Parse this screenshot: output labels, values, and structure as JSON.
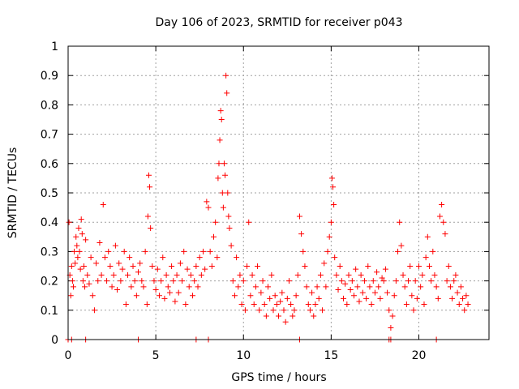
{
  "chart_data": {
    "type": "scatter",
    "title": "Day 106 of 2023, SRMTID for receiver p043",
    "xlabel": "GPS time / hours",
    "ylabel": "SRMTID / TECUs",
    "xlim": [
      0,
      24
    ],
    "ylim": [
      0,
      1
    ],
    "xticks": [
      0,
      5,
      10,
      15,
      20
    ],
    "xtick_labels": [
      "0",
      "5",
      "10",
      "15",
      "20"
    ],
    "yticks": [
      0,
      0.1,
      0.2,
      0.3,
      0.4,
      0.5,
      0.6,
      0.7,
      0.8,
      0.9,
      1
    ],
    "ytick_labels": [
      "0",
      "0.1",
      "0.2",
      "0.3",
      "0.4",
      "0.5",
      "0.6",
      "0.7",
      "0.8",
      "0.9",
      "1"
    ],
    "grid": true,
    "marker": "+",
    "color": "#ff0000",
    "series": [
      {
        "name": "SRMTID",
        "x": [
          0.05,
          0.1,
          0.15,
          0.2,
          0.25,
          0.3,
          0.35,
          0.4,
          0.45,
          0.5,
          0.55,
          0.6,
          0.65,
          0.7,
          0.75,
          0.8,
          0.85,
          0.9,
          0.95,
          1.0,
          1.1,
          1.2,
          1.3,
          1.4,
          1.5,
          1.6,
          1.7,
          1.8,
          1.9,
          2.0,
          2.1,
          2.2,
          2.3,
          2.4,
          2.5,
          2.6,
          2.7,
          2.8,
          2.9,
          3.0,
          3.1,
          3.2,
          3.3,
          3.4,
          3.5,
          3.6,
          3.7,
          3.8,
          3.9,
          4.0,
          4.1,
          4.2,
          4.3,
          4.4,
          4.5,
          4.55,
          4.6,
          4.65,
          4.7,
          4.8,
          4.9,
          5.0,
          5.1,
          5.2,
          5.3,
          5.4,
          5.5,
          5.6,
          5.7,
          5.8,
          5.9,
          6.0,
          6.1,
          6.2,
          6.3,
          6.4,
          6.5,
          6.6,
          6.7,
          6.8,
          6.9,
          7.0,
          7.1,
          7.2,
          7.3,
          7.4,
          7.5,
          7.6,
          7.7,
          7.8,
          7.9,
          8.0,
          8.1,
          8.2,
          8.3,
          8.4,
          8.5,
          8.55,
          8.6,
          8.65,
          8.7,
          8.75,
          8.8,
          8.85,
          8.9,
          8.95,
          9.0,
          9.05,
          9.1,
          9.15,
          9.2,
          9.3,
          9.4,
          9.5,
          9.6,
          9.7,
          9.8,
          9.9,
          10.0,
          10.1,
          10.2,
          10.3,
          10.4,
          10.5,
          10.6,
          10.7,
          10.8,
          10.9,
          11.0,
          11.1,
          11.2,
          11.3,
          11.4,
          11.5,
          11.6,
          11.7,
          11.8,
          11.9,
          12.0,
          12.1,
          12.2,
          12.3,
          12.4,
          12.5,
          12.6,
          12.7,
          12.8,
          12.9,
          13.0,
          13.1,
          13.2,
          13.3,
          13.4,
          13.5,
          13.6,
          13.7,
          13.8,
          13.9,
          14.0,
          14.1,
          14.2,
          14.3,
          14.4,
          14.5,
          14.6,
          14.7,
          14.8,
          14.9,
          15.0,
          15.05,
          15.1,
          15.15,
          15.2,
          15.3,
          15.4,
          15.5,
          15.6,
          15.7,
          15.8,
          15.9,
          16.0,
          16.1,
          16.2,
          16.3,
          16.4,
          16.5,
          16.6,
          16.7,
          16.8,
          16.9,
          17.0,
          17.1,
          17.2,
          17.3,
          17.4,
          17.5,
          17.6,
          17.7,
          17.8,
          17.9,
          18.0,
          18.1,
          18.2,
          18.3,
          18.4,
          18.5,
          18.6,
          18.7,
          18.8,
          18.9,
          19.0,
          19.1,
          19.2,
          19.3,
          19.4,
          19.5,
          19.6,
          19.7,
          19.8,
          19.9,
          20.0,
          20.1,
          20.2,
          20.3,
          20.4,
          20.5,
          20.6,
          20.7,
          20.8,
          20.9,
          21.0,
          21.1,
          21.2,
          21.3,
          21.4,
          21.5,
          21.6,
          21.7,
          21.8,
          21.9,
          22.0,
          22.1,
          22.2,
          22.3,
          22.4,
          22.5,
          22.6,
          22.7,
          22.8,
          0.0,
          0.2,
          1.0,
          4.0,
          7.3,
          8.0,
          13.2,
          18.3,
          18.4,
          21.0
        ],
        "y": [
          0.4,
          0.22,
          0.15,
          0.25,
          0.2,
          0.18,
          0.3,
          0.26,
          0.35,
          0.32,
          0.28,
          0.38,
          0.3,
          0.24,
          0.41,
          0.36,
          0.2,
          0.25,
          0.18,
          0.34,
          0.22,
          0.19,
          0.28,
          0.15,
          0.1,
          0.26,
          0.2,
          0.33,
          0.22,
          0.46,
          0.28,
          0.2,
          0.3,
          0.25,
          0.18,
          0.22,
          0.32,
          0.17,
          0.26,
          0.2,
          0.24,
          0.3,
          0.12,
          0.22,
          0.28,
          0.18,
          0.25,
          0.2,
          0.15,
          0.23,
          0.26,
          0.2,
          0.18,
          0.3,
          0.12,
          0.42,
          0.56,
          0.52,
          0.38,
          0.25,
          0.2,
          0.17,
          0.24,
          0.15,
          0.2,
          0.28,
          0.14,
          0.22,
          0.18,
          0.16,
          0.25,
          0.2,
          0.13,
          0.22,
          0.16,
          0.26,
          0.2,
          0.3,
          0.12,
          0.24,
          0.18,
          0.22,
          0.15,
          0.2,
          0.25,
          0.18,
          0.28,
          0.22,
          0.3,
          0.24,
          0.47,
          0.45,
          0.3,
          0.25,
          0.35,
          0.4,
          0.28,
          0.55,
          0.6,
          0.68,
          0.78,
          0.75,
          0.5,
          0.45,
          0.6,
          0.56,
          0.9,
          0.84,
          0.5,
          0.42,
          0.38,
          0.32,
          0.2,
          0.15,
          0.28,
          0.18,
          0.22,
          0.12,
          0.2,
          0.1,
          0.25,
          0.4,
          0.15,
          0.22,
          0.12,
          0.18,
          0.25,
          0.1,
          0.16,
          0.2,
          0.12,
          0.08,
          0.18,
          0.14,
          0.22,
          0.1,
          0.15,
          0.12,
          0.08,
          0.13,
          0.16,
          0.1,
          0.06,
          0.14,
          0.2,
          0.12,
          0.08,
          0.1,
          0.15,
          0.22,
          0.42,
          0.36,
          0.3,
          0.25,
          0.18,
          0.12,
          0.1,
          0.16,
          0.08,
          0.12,
          0.18,
          0.14,
          0.22,
          0.1,
          0.26,
          0.18,
          0.3,
          0.35,
          0.4,
          0.55,
          0.52,
          0.46,
          0.28,
          0.22,
          0.17,
          0.25,
          0.2,
          0.14,
          0.19,
          0.12,
          0.22,
          0.17,
          0.2,
          0.15,
          0.24,
          0.18,
          0.13,
          0.22,
          0.16,
          0.2,
          0.14,
          0.25,
          0.18,
          0.12,
          0.2,
          0.16,
          0.23,
          0.18,
          0.14,
          0.21,
          0.2,
          0.24,
          0.16,
          0.1,
          0.04,
          0.08,
          0.15,
          0.2,
          0.3,
          0.4,
          0.32,
          0.22,
          0.18,
          0.12,
          0.2,
          0.25,
          0.15,
          0.1,
          0.2,
          0.14,
          0.25,
          0.18,
          0.22,
          0.12,
          0.28,
          0.35,
          0.25,
          0.2,
          0.3,
          0.22,
          0.18,
          0.14,
          0.42,
          0.46,
          0.4,
          0.36,
          0.2,
          0.25,
          0.18,
          0.14,
          0.2,
          0.22,
          0.16,
          0.12,
          0.18,
          0.14,
          0.1,
          0.15,
          0.12,
          0.0,
          0.0,
          0.0,
          0.0,
          0.0,
          0.0,
          0.0,
          0.0,
          0.0,
          0.0
        ]
      }
    ]
  }
}
